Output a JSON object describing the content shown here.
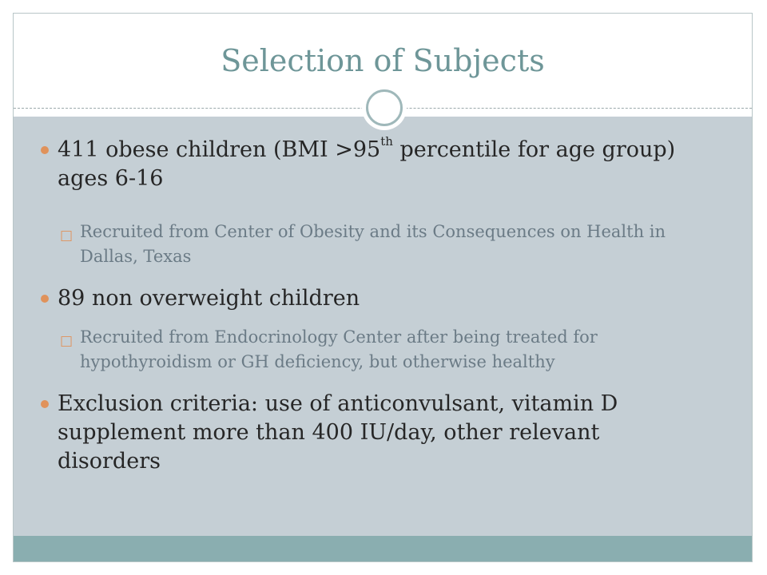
{
  "slide": {
    "title": "Selection of Subjects",
    "bullets": {
      "b1": {
        "part1": "411 obese children (BMI >95",
        "sup": "th",
        "part2": " percentile for age group) ages 6-16",
        "sub": "Recruited from Center of Obesity and its Consequences on Health in Dallas, Texas"
      },
      "b2": {
        "text": "89 non overweight children",
        "sub": "Recruited from Endocrinology Center after being treated for hypothyroidism or GH deficiency, but otherwise healthy"
      },
      "b3": {
        "text": "Exclusion criteria: use of anticonvulsant, vitamin D supplement more than 400 IU/day, other relevant disorders"
      }
    },
    "bullet_icon": "filled-circle-icon",
    "sub_bullet_icon": "hollow-square-icon"
  },
  "colors": {
    "title": "#6e9698",
    "content_band": "#c5cfd5",
    "footer_band": "#8aaeb0",
    "bullet": "#e0925b",
    "body_text": "#262626",
    "sub_text": "#6b7b86"
  }
}
